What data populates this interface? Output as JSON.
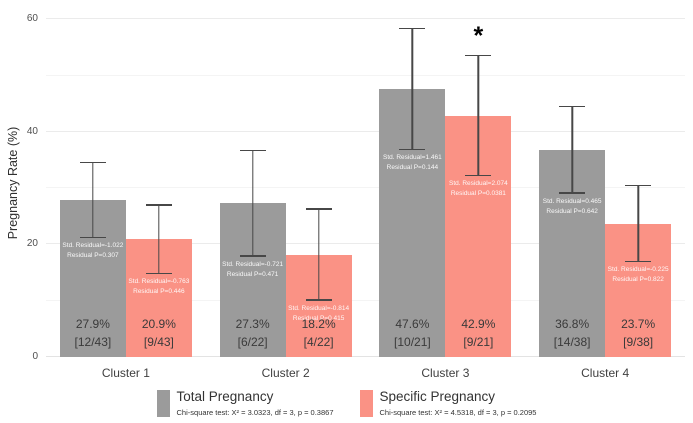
{
  "y_axis": {
    "title": "Pregnancy Rate (%)",
    "ticks": [
      0,
      20,
      40,
      60
    ],
    "minor_grid": [
      10,
      30,
      50
    ],
    "major_grid": [
      20,
      40,
      60
    ],
    "max": 62
  },
  "x_axis": {
    "categories": [
      "Cluster 1",
      "Cluster 2",
      "Cluster 3",
      "Cluster 4"
    ]
  },
  "legend": {
    "items": [
      {
        "label": "Total Pregnancy",
        "subtitle": "Chi-square test: X² = 3.0323, df = 3, p = 0.3867",
        "swatch_color": "#9B9B9B"
      },
      {
        "label": "Specific Pregnancy",
        "subtitle": "Chi-square test: X² = 4.5318, df = 3, p = 0.2095",
        "swatch_color": "#FA9285"
      }
    ]
  },
  "chart_data": {
    "type": "bar",
    "title": "",
    "xlabel": "",
    "ylabel": "Pregnancy Rate (%)",
    "ylim": [
      0,
      62
    ],
    "yticks": [
      0,
      20,
      40,
      60
    ],
    "grid": "horizontal-light",
    "legend_position": "bottom-center",
    "error_bars": "plus-minus-1-SE",
    "categories": [
      "Cluster 1",
      "Cluster 2",
      "Cluster 3",
      "Cluster 4"
    ],
    "series": [
      {
        "name": "Total Pregnancy",
        "color": "#9B9B9B",
        "values": [
          27.9,
          27.3,
          47.6,
          36.8
        ],
        "value_labels": [
          "27.9%",
          "27.3%",
          "47.6%",
          "36.8%"
        ],
        "count_labels": [
          "[12/43]",
          "[6/22]",
          "[10/21]",
          "[14/38]"
        ],
        "error_low": [
          21.1,
          17.8,
          36.7,
          29.0
        ],
        "error_high": [
          34.7,
          36.8,
          58.5,
          44.6
        ],
        "annotations": [
          [
            "Std. Residual=-1.022",
            "Residual P=0.307"
          ],
          [
            "Std. Residual=-0.721",
            "Residual P=0.471"
          ],
          [
            "Std. Residual=1.461",
            "Residual P=0.144"
          ],
          [
            "Std. Residual=0.465",
            "Residual P=0.642"
          ]
        ],
        "legend_subtitle": "Chi-square test: X² = 3.0323, df = 3, p = 0.3867"
      },
      {
        "name": "Specific Pregnancy",
        "color": "#FA9285",
        "values": [
          20.9,
          18.2,
          42.9,
          23.7
        ],
        "value_labels": [
          "20.9%",
          "18.2%",
          "42.9%",
          "23.7%"
        ],
        "count_labels": [
          "[9/43]",
          "[4/22]",
          "[9/21]",
          "[9/38]"
        ],
        "error_low": [
          14.7,
          10.0,
          32.1,
          16.8
        ],
        "error_high": [
          27.1,
          26.4,
          53.7,
          30.6
        ],
        "annotations": [
          [
            "Std. Residual=-0.763",
            "Residual P=0.446"
          ],
          [
            "Std. Residual=-0.814",
            "Residual P=0.415"
          ],
          [
            "Std. Residual=2.074",
            "Residual P=0.0381"
          ],
          [
            "Std. Residual=-0.225",
            "Residual P=0.822"
          ]
        ],
        "legend_subtitle": "Chi-square test: X² = 4.5318, df = 3, p = 0.2095"
      }
    ],
    "significance_markers": [
      {
        "symbol": "*",
        "category": "Cluster 3",
        "series": "Specific Pregnancy"
      }
    ]
  }
}
